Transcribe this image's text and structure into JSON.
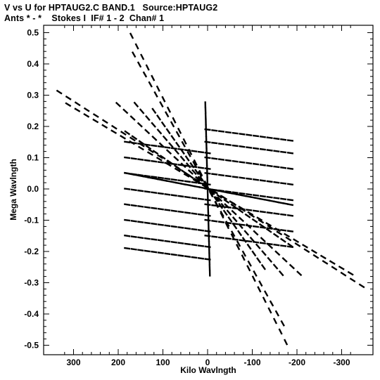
{
  "header": {
    "title_line1": "V vs U for HPTAUG2.C BAND.1   Source:HPTAUG2",
    "title_line2": "Ants * - *    Stokes I  IF# 1 - 2  Chan# 1"
  },
  "chart_data": {
    "type": "scatter",
    "title": "V vs U for HPTAUG2.C BAND.1   Source:HPTAUG2",
    "subtitle": "Ants * - *    Stokes I  IF# 1 - 2  Chan# 1",
    "xlabel": "Kilo Wavlngth",
    "ylabel": "Mega Wavlngth",
    "xlim": [
      340,
      -340
    ],
    "ylim": [
      -0.52,
      0.52
    ],
    "xticks": [
      300,
      200,
      100,
      0,
      -100,
      -200,
      -300
    ],
    "xtick_labels": [
      "300",
      "200",
      "100",
      "0",
      "-100",
      "-200",
      "-300"
    ],
    "yticks": [
      0.5,
      0.4,
      0.3,
      0.2,
      0.1,
      0.0,
      -0.1,
      -0.2,
      -0.3,
      -0.4,
      -0.5
    ],
    "ytick_labels": [
      "0.5",
      "0.4",
      "0.3",
      "0.2",
      "0.1",
      "0.0",
      "-0.1",
      "-0.2",
      "-0.3",
      "-0.4",
      "-0.5"
    ],
    "grid": false,
    "marker_color": "#000000",
    "tracks": [
      {
        "name_hint": "long diagonal baseline",
        "u_start": 332,
        "v_start": 0.31,
        "u_end": -345,
        "v_end": -0.31,
        "points": 34
      },
      {
        "name_hint": "parallel diagonal baseline",
        "u_start": 312,
        "v_start": 0.27,
        "u_end": -320,
        "v_end": -0.27,
        "points": 32
      },
      {
        "name_hint": "steep baseline",
        "u_start": 170,
        "v_start": 0.49,
        "u_end": -175,
        "v_end": -0.49,
        "points": 30
      },
      {
        "name_hint": "steep baseline 2",
        "u_start": 165,
        "v_start": 0.43,
        "u_end": -168,
        "v_end": -0.43,
        "points": 28
      },
      {
        "name_hint": "near-horizontal baseline",
        "u_start": 180,
        "v_start": 0.05,
        "u_end": -185,
        "v_end": -0.05,
        "points": 36
      },
      {
        "name_hint": "near-vertical baseline",
        "u_start": 5,
        "v_start": 0.27,
        "u_end": -5,
        "v_end": -0.27,
        "points": 30
      },
      {
        "name_hint": "diagonal fan 1",
        "u_start": 160,
        "v_start": 0.27,
        "u_end": -165,
        "v_end": -0.27,
        "points": 26
      },
      {
        "name_hint": "diagonal fan 2",
        "u_start": 200,
        "v_start": 0.27,
        "u_end": -205,
        "v_end": -0.27,
        "points": 26
      },
      {
        "name_hint": "diagonal fan 3",
        "u_start": 120,
        "v_start": 0.25,
        "u_end": -125,
        "v_end": -0.25,
        "points": 24
      },
      {
        "name_hint": "diagonal fan 4",
        "u_start": 180,
        "v_start": 0.18,
        "u_end": -185,
        "v_end": -0.18,
        "points": 24
      }
    ],
    "grid_rows": {
      "v_values_left": [
        0.15,
        0.1,
        0.05,
        0.0,
        -0.05,
        -0.1,
        -0.15,
        -0.19
      ],
      "v_values_right": [
        0.19,
        0.15,
        0.1,
        0.05,
        0.0,
        -0.05,
        -0.1,
        -0.15
      ],
      "u_left": [
        180,
        0
      ],
      "u_right": [
        0,
        -185
      ],
      "tilt": -0.035
    }
  }
}
